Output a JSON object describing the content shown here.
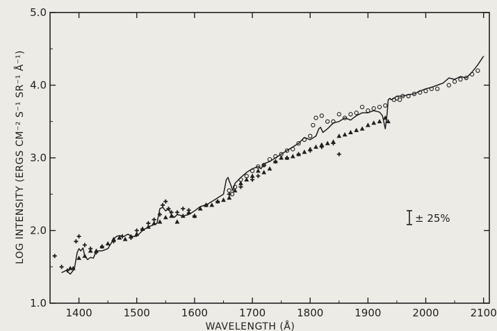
{
  "chart_data": {
    "type": "scatter",
    "title": "",
    "xlabel": "WAVELENGTH (Å)",
    "ylabel": "LOG INTENSITY (ERGS CM⁻² S⁻¹ SR⁻¹ Å⁻¹)",
    "xlim": [
      1350,
      2110
    ],
    "ylim": [
      1.0,
      5.0
    ],
    "x_ticks": [
      1400,
      1500,
      1600,
      1700,
      1800,
      1900,
      2000,
      2100
    ],
    "y_ticks": [
      1.0,
      2.0,
      3.0,
      4.0,
      5.0
    ],
    "y_tick_labels": [
      "1.0",
      "2.0",
      "3.0",
      "4.0",
      "5.0"
    ],
    "grid": false,
    "annotation": "± 25%",
    "colors": {
      "ink": "#1f1f1f",
      "paper": "#ecebe6"
    },
    "series": [
      {
        "marker": "line",
        "x": [
          1370,
          1378,
          1385,
          1392,
          1397,
          1400,
          1403,
          1407,
          1410,
          1415,
          1420,
          1425,
          1430,
          1440,
          1450,
          1460,
          1465,
          1470,
          1478,
          1485,
          1490,
          1500,
          1510,
          1520,
          1530,
          1535,
          1540,
          1545,
          1550,
          1555,
          1560,
          1565,
          1570,
          1580,
          1590,
          1600,
          1610,
          1620,
          1630,
          1640,
          1650,
          1655,
          1658,
          1660,
          1663,
          1666,
          1670,
          1680,
          1690,
          1700,
          1710,
          1715,
          1720,
          1730,
          1740,
          1750,
          1760,
          1770,
          1780,
          1790,
          1800,
          1810,
          1815,
          1818,
          1822,
          1830,
          1840,
          1850,
          1860,
          1870,
          1880,
          1890,
          1900,
          1910,
          1920,
          1925,
          1930,
          1933,
          1935,
          1938,
          1940,
          1945,
          1950,
          1960,
          1970,
          1980,
          1990,
          2000,
          2010,
          2020,
          2030,
          2040,
          2050,
          2060,
          2070,
          2080,
          2090,
          2100
        ],
        "y": [
          1.42,
          1.45,
          1.4,
          1.47,
          1.7,
          1.75,
          1.72,
          1.76,
          1.65,
          1.6,
          1.63,
          1.62,
          1.72,
          1.72,
          1.75,
          1.88,
          1.92,
          1.93,
          1.92,
          1.95,
          1.92,
          1.92,
          2.0,
          2.05,
          2.08,
          2.1,
          2.3,
          2.32,
          2.27,
          2.3,
          2.22,
          2.18,
          2.22,
          2.2,
          2.22,
          2.27,
          2.33,
          2.35,
          2.4,
          2.45,
          2.5,
          2.7,
          2.73,
          2.68,
          2.62,
          2.55,
          2.65,
          2.73,
          2.8,
          2.85,
          2.88,
          2.85,
          2.92,
          2.95,
          3.0,
          3.05,
          3.1,
          3.15,
          3.2,
          3.28,
          3.25,
          3.3,
          3.4,
          3.42,
          3.35,
          3.4,
          3.48,
          3.5,
          3.55,
          3.52,
          3.58,
          3.62,
          3.62,
          3.65,
          3.63,
          3.58,
          3.4,
          3.6,
          3.8,
          3.82,
          3.8,
          3.82,
          3.85,
          3.85,
          3.87,
          3.88,
          3.92,
          3.95,
          3.97,
          4.0,
          4.03,
          4.1,
          4.08,
          4.12,
          4.1,
          4.18,
          4.28,
          4.4
        ]
      },
      {
        "marker": "circle",
        "x": [
          1660,
          1665,
          1670,
          1680,
          1690,
          1700,
          1710,
          1720,
          1730,
          1740,
          1750,
          1760,
          1770,
          1780,
          1790,
          1800,
          1805,
          1810,
          1820,
          1830,
          1840,
          1850,
          1860,
          1870,
          1880,
          1890,
          1900,
          1910,
          1920,
          1930,
          1945,
          1950,
          1955,
          1960,
          1970,
          1980,
          1990,
          2000,
          2010,
          2020,
          2040,
          2050,
          2060,
          2070,
          2080,
          2090
        ],
        "y": [
          2.55,
          2.5,
          2.6,
          2.7,
          2.75,
          2.82,
          2.88,
          2.9,
          2.98,
          3.02,
          3.05,
          3.1,
          3.12,
          3.2,
          3.25,
          3.3,
          3.45,
          3.55,
          3.58,
          3.5,
          3.5,
          3.6,
          3.55,
          3.6,
          3.62,
          3.7,
          3.65,
          3.68,
          3.7,
          3.72,
          3.8,
          3.82,
          3.8,
          3.85,
          3.85,
          3.88,
          3.9,
          3.92,
          3.95,
          3.95,
          4.0,
          4.05,
          4.08,
          4.1,
          4.15,
          4.2
        ]
      },
      {
        "marker": "triangle",
        "x": [
          1385,
          1390,
          1400,
          1410,
          1420,
          1430,
          1440,
          1450,
          1460,
          1470,
          1480,
          1490,
          1500,
          1510,
          1520,
          1530,
          1540,
          1550,
          1560,
          1570,
          1580,
          1590,
          1600,
          1610,
          1620,
          1630,
          1640,
          1650,
          1660,
          1670,
          1680,
          1690,
          1700,
          1710,
          1720,
          1730,
          1740,
          1750,
          1760,
          1770,
          1780,
          1790,
          1800,
          1810,
          1820,
          1830,
          1840,
          1850,
          1860,
          1870,
          1880,
          1890,
          1900,
          1910,
          1920,
          1930,
          1935
        ],
        "y": [
          1.48,
          1.48,
          1.62,
          1.65,
          1.72,
          1.72,
          1.78,
          1.82,
          1.88,
          1.9,
          1.88,
          1.92,
          1.95,
          2.02,
          2.05,
          2.1,
          2.12,
          2.18,
          2.2,
          2.12,
          2.2,
          2.25,
          2.2,
          2.3,
          2.35,
          2.35,
          2.4,
          2.42,
          2.45,
          2.55,
          2.65,
          2.7,
          2.75,
          2.82,
          2.8,
          2.85,
          2.95,
          3.0,
          3.0,
          3.02,
          3.05,
          3.08,
          3.12,
          3.15,
          3.18,
          3.2,
          3.22,
          3.3,
          3.32,
          3.35,
          3.38,
          3.4,
          3.45,
          3.48,
          3.5,
          3.55,
          3.5
        ]
      },
      {
        "marker": "plus",
        "x": [
          1358,
          1370,
          1380,
          1395,
          1400,
          1410,
          1420,
          1430,
          1440,
          1460,
          1475,
          1490,
          1500,
          1510,
          1520,
          1530,
          1540,
          1545,
          1550,
          1555,
          1560,
          1570,
          1580,
          1590,
          1600,
          1620,
          1640,
          1660,
          1680,
          1700,
          1710,
          1720,
          1740,
          1760,
          1780,
          1800,
          1820,
          1840,
          1850
        ],
        "y": [
          1.65,
          1.5,
          1.45,
          1.85,
          1.92,
          1.8,
          1.75,
          1.7,
          1.78,
          1.85,
          1.92,
          1.9,
          2.0,
          2.02,
          2.1,
          2.15,
          2.22,
          2.35,
          2.4,
          2.3,
          2.25,
          2.25,
          2.3,
          2.28,
          2.2,
          2.35,
          2.4,
          2.5,
          2.6,
          2.7,
          2.75,
          2.9,
          2.95,
          3.0,
          3.05,
          3.1,
          3.15,
          3.2,
          3.05
        ]
      }
    ]
  }
}
